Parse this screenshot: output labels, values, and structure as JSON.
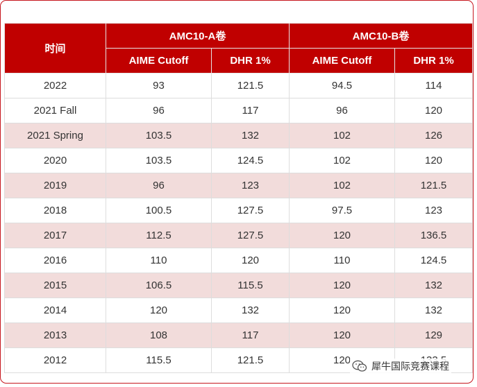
{
  "table": {
    "header": {
      "time": "时间",
      "group_a": "AMC10-A卷",
      "group_b": "AMC10-B卷",
      "sub": [
        "AIME Cutoff",
        "DHR 1%",
        "AIME Cutoff",
        "DHR 1%"
      ]
    },
    "rows": [
      [
        "2022",
        "93",
        "121.5",
        "94.5",
        "114"
      ],
      [
        "2021 Fall",
        "96",
        "117",
        "96",
        "120"
      ],
      [
        "2021 Spring",
        "103.5",
        "132",
        "102",
        "126"
      ],
      [
        "2020",
        "103.5",
        "124.5",
        "102",
        "120"
      ],
      [
        "2019",
        "96",
        "123",
        "102",
        "121.5"
      ],
      [
        "2018",
        "100.5",
        "127.5",
        "97.5",
        "123"
      ],
      [
        "2017",
        "112.5",
        "127.5",
        "120",
        "136.5"
      ],
      [
        "2016",
        "110",
        "120",
        "110",
        "124.5"
      ],
      [
        "2015",
        "106.5",
        "115.5",
        "120",
        "132"
      ],
      [
        "2014",
        "120",
        "132",
        "120",
        "132"
      ],
      [
        "2013",
        "108",
        "117",
        "120",
        "129"
      ],
      [
        "2012",
        "115.5",
        "121.5",
        "120",
        "133.5"
      ]
    ]
  },
  "watermark": {
    "text": "犀牛国际竞赛课程",
    "icon": "wechat-icon"
  },
  "colors": {
    "header_bg": "#c00000",
    "frame_border": "#c6151d",
    "stripe_pink": "#f2dcdb"
  }
}
